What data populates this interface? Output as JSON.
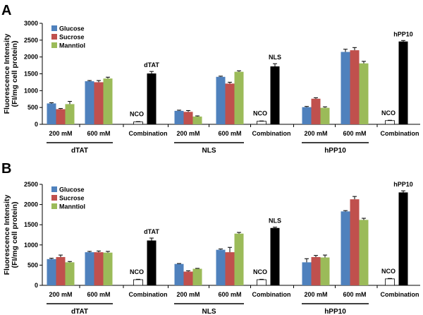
{
  "chart_data": [
    {
      "panel": "A",
      "type": "bar",
      "ylabel": "Fluorescence Intensity (FI/mg cell protein)",
      "ylabel_lines": [
        "Fluorescence Intensity",
        "(FI/mg cell protein)"
      ],
      "ylim": [
        0,
        3000
      ],
      "ytick_step": 500,
      "legend": [
        {
          "name": "Glucose",
          "color": "#4f81bd"
        },
        {
          "name": "Sucrose",
          "color": "#c0504d"
        },
        {
          "name": "Manntiol",
          "color": "#9bbb59"
        }
      ],
      "groups": [
        {
          "label": "dTAT",
          "conditions": [
            {
              "label": "200 mM",
              "values": [
                620,
                450,
                600
              ],
              "errors": [
                20,
                20,
                80
              ]
            },
            {
              "label": "600 mM",
              "values": [
                1280,
                1250,
                1360
              ],
              "errors": [
                20,
                50,
                40
              ]
            }
          ],
          "combination": {
            "label": "Combination",
            "nco_label": "NCO",
            "nco": 70,
            "nco_err": 10,
            "peptide_label": "dTAT",
            "value": 1510,
            "error": 60
          }
        },
        {
          "label": "NLS",
          "conditions": [
            {
              "label": "200 mM",
              "values": [
                400,
                370,
                230
              ],
              "errors": [
                20,
                40,
                20
              ]
            },
            {
              "label": "600 mM",
              "values": [
                1410,
                1210,
                1560
              ],
              "errors": [
                20,
                40,
                30
              ]
            }
          ],
          "combination": {
            "label": "Combination",
            "nco_label": "NCO",
            "nco": 90,
            "nco_err": 10,
            "peptide_label": "NLS",
            "value": 1720,
            "error": 80
          }
        },
        {
          "label": "hPP10",
          "conditions": [
            {
              "label": "200 mM",
              "values": [
                510,
                760,
                490
              ],
              "errors": [
                20,
                30,
                30
              ]
            },
            {
              "label": "600 mM",
              "values": [
                2150,
                2200,
                1810
              ],
              "errors": [
                80,
                80,
                60
              ]
            }
          ],
          "combination": {
            "label": "Combination",
            "nco_label": "NCO",
            "nco": 110,
            "nco_err": 10,
            "peptide_label": "hPP10",
            "value": 2460,
            "error": 30
          }
        }
      ]
    },
    {
      "panel": "B",
      "type": "bar",
      "ylabel": "Fluorescence Intensity (FI/mg cell protein)",
      "ylabel_lines": [
        "Fluorescence Intensity",
        "(FI/mg cell protein)"
      ],
      "ylim": [
        0,
        2500
      ],
      "ytick_step": 500,
      "legend": [
        {
          "name": "Glucose",
          "color": "#4f81bd"
        },
        {
          "name": "Sucrose",
          "color": "#c0504d"
        },
        {
          "name": "Manntiol",
          "color": "#9bbb59"
        }
      ],
      "groups": [
        {
          "label": "dTAT",
          "conditions": [
            {
              "label": "200 mM",
              "values": [
                650,
                700,
                570
              ],
              "errors": [
                20,
                50,
                20
              ]
            },
            {
              "label": "600 mM",
              "values": [
                820,
                820,
                810
              ],
              "errors": [
                20,
                30,
                30
              ]
            }
          ],
          "combination": {
            "label": "Combination",
            "nco_label": "NCO",
            "nco": 140,
            "nco_err": 10,
            "peptide_label": "dTAT",
            "value": 1110,
            "error": 60
          }
        },
        {
          "label": "NLS",
          "conditions": [
            {
              "label": "200 mM",
              "values": [
                530,
                340,
                410
              ],
              "errors": [
                10,
                20,
                10
              ]
            },
            {
              "label": "600 mM",
              "values": [
                880,
                820,
                1280
              ],
              "errors": [
                20,
                120,
                30
              ]
            }
          ],
          "combination": {
            "label": "Combination",
            "nco_label": "NCO",
            "nco": 140,
            "nco_err": 10,
            "peptide_label": "NLS",
            "value": 1420,
            "error": 20
          }
        },
        {
          "label": "hPP10",
          "conditions": [
            {
              "label": "200 mM",
              "values": [
                570,
                700,
                690
              ],
              "errors": [
                90,
                40,
                60
              ]
            },
            {
              "label": "600 mM",
              "values": [
                1830,
                2130,
                1620
              ],
              "errors": [
                20,
                70,
                40
              ]
            }
          ],
          "combination": {
            "label": "Combination",
            "nco_label": "NCO",
            "nco": 160,
            "nco_err": 10,
            "peptide_label": "hPP10",
            "value": 2300,
            "error": 40
          }
        }
      ]
    }
  ]
}
